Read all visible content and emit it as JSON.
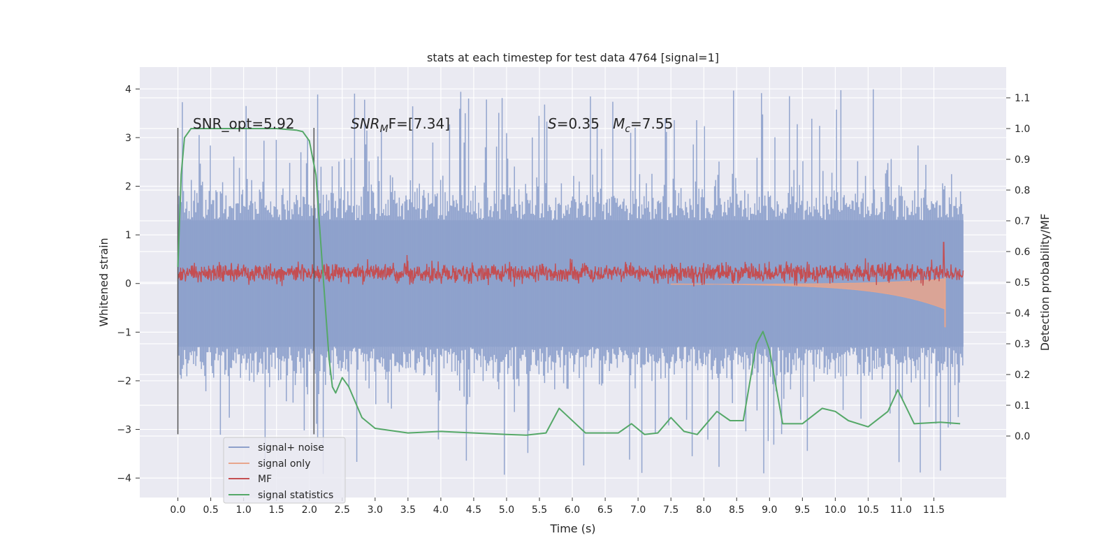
{
  "chart_data": {
    "type": "line",
    "title": "stats at each timestep for test data 4764 [signal=1]",
    "xlabel": "Time (s)",
    "ylabel_left": "Whitened strain",
    "ylabel_right": "Detection probability/MF",
    "xlim": [
      -0.58,
      12.6
    ],
    "ylim_left": [
      -4.4,
      4.45
    ],
    "ylim_right": [
      -0.2,
      1.2
    ],
    "x_ticks": [
      0.0,
      0.5,
      1.0,
      1.5,
      2.0,
      2.5,
      3.0,
      3.5,
      4.0,
      4.5,
      5.0,
      5.5,
      6.0,
      6.5,
      7.0,
      7.5,
      8.0,
      8.5,
      9.0,
      9.5,
      10.0,
      10.5,
      11.0,
      11.5
    ],
    "x_tick_labels": [
      "0.0",
      "0.5",
      "1.0",
      "1.5",
      "2.0",
      "2.5",
      "3.0",
      "3.5",
      "4.0",
      "4.5",
      "5.0",
      "5.5",
      "6.0",
      "6.5",
      "7.0",
      "7.5",
      "8.0",
      "8.5",
      "9.0",
      "9.5",
      "10.0",
      "10.5",
      "11.0",
      "11.5"
    ],
    "y_ticks_left": [
      -4,
      -3,
      -2,
      -1,
      0,
      1,
      2,
      3,
      4
    ],
    "y_tick_labels_left": [
      "−4",
      "−3",
      "−2",
      "−1",
      "0",
      "1",
      "2",
      "3",
      "4"
    ],
    "y_ticks_right": [
      0.0,
      0.1,
      0.2,
      0.3,
      0.4,
      0.5,
      0.6,
      0.7,
      0.8,
      0.9,
      1.0,
      1.1
    ],
    "y_tick_labels_right": [
      "0.0",
      "0.1",
      "0.2",
      "0.3",
      "0.4",
      "0.5",
      "0.6",
      "0.7",
      "0.8",
      "0.9",
      "1.0",
      "1.1"
    ],
    "grid": true,
    "legend_position": "lower-left",
    "annotations": {
      "snr_opt": "SNR_opt=5.92",
      "snr_mf_italic": "SNR",
      "snr_mf_sub": "M",
      "snr_mf_rest": "F=[7.34]",
      "s_italic": "S",
      "s_rest": "=0.35   ",
      "mc_italic": "M",
      "mc_sub": "c",
      "mc_rest": "=7.55"
    },
    "markers": [
      {
        "x": 0.0,
        "y_range": [
          -3.1,
          3.2
        ]
      },
      {
        "x": 2.07,
        "y_range": [
          -3.1,
          3.2
        ]
      }
    ],
    "series": [
      {
        "name": "signal+ noise",
        "axis": "left",
        "color": "#8da0cb",
        "style": "noise",
        "x_range": [
          0.0,
          11.95
        ],
        "envelope": {
          "core": [
            -1.3,
            1.3
          ],
          "extremes": [
            -4.0,
            4.1
          ]
        }
      },
      {
        "name": "signal only",
        "axis": "left",
        "color": "#e8a58c",
        "style": "chirp",
        "x_range": [
          7.5,
          11.67
        ],
        "peak_amplitude": 0.9
      },
      {
        "name": "MF",
        "axis": "right",
        "color": "#c44e52",
        "style": "band",
        "x_range": [
          0.0,
          11.95
        ],
        "band": [
          0.5,
          0.56
        ],
        "peak": {
          "x": 11.65,
          "y": 0.63
        }
      },
      {
        "name": "signal statistics",
        "axis": "right",
        "color": "#55a868",
        "style": "line",
        "x": [
          0.0,
          0.05,
          0.1,
          0.2,
          0.5,
          1.0,
          1.5,
          1.8,
          1.9,
          2.0,
          2.1,
          2.2,
          2.3,
          2.35,
          2.4,
          2.5,
          2.6,
          2.7,
          2.8,
          3.0,
          3.5,
          4.0,
          4.5,
          5.0,
          5.3,
          5.6,
          5.8,
          5.9,
          6.2,
          6.7,
          6.9,
          7.1,
          7.3,
          7.5,
          7.7,
          7.9,
          8.2,
          8.4,
          8.6,
          8.8,
          8.9,
          9.0,
          9.2,
          9.5,
          9.8,
          10.0,
          10.2,
          10.5,
          10.8,
          10.95,
          11.2,
          11.6,
          11.9
        ],
        "y": [
          0.55,
          0.85,
          0.97,
          1.0,
          1.0,
          1.0,
          1.0,
          0.995,
          0.99,
          0.96,
          0.85,
          0.55,
          0.25,
          0.16,
          0.14,
          0.19,
          0.16,
          0.11,
          0.06,
          0.025,
          0.01,
          0.015,
          0.01,
          0.005,
          0.003,
          0.01,
          0.09,
          0.07,
          0.01,
          0.01,
          0.04,
          0.005,
          0.01,
          0.06,
          0.015,
          0.005,
          0.08,
          0.05,
          0.05,
          0.3,
          0.34,
          0.28,
          0.04,
          0.04,
          0.09,
          0.08,
          0.05,
          0.03,
          0.08,
          0.15,
          0.04,
          0.045,
          0.04
        ]
      }
    ]
  }
}
